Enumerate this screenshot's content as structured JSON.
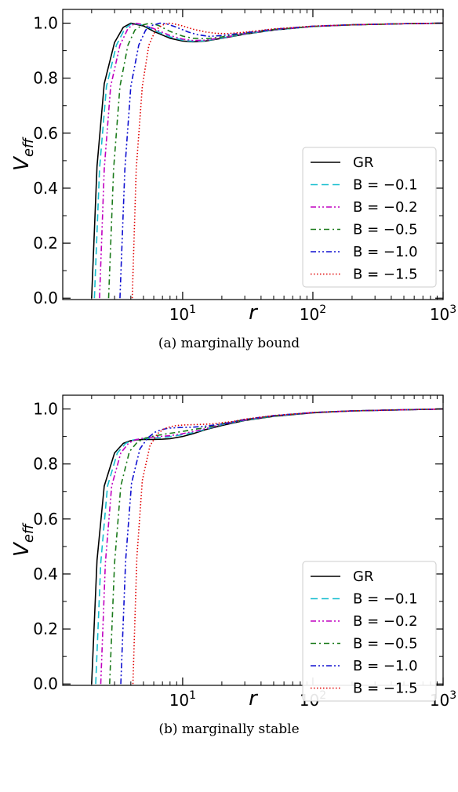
{
  "chart_data": [
    {
      "type": "line",
      "title": "",
      "caption": "(a) marginally bound",
      "xlabel": "r",
      "ylabel": "V_eff",
      "xscale": "log",
      "xlim": [
        1.2,
        1000
      ],
      "ylim": [
        -0.005,
        1.05
      ],
      "xticks": [
        {
          "value": 10,
          "label": "10",
          "exp": "1"
        },
        {
          "value": 100,
          "label": "10",
          "exp": "2"
        },
        {
          "value": 1000,
          "label": "10",
          "exp": "3"
        }
      ],
      "yticks": [
        "0.0",
        "0.2",
        "0.4",
        "0.6",
        "0.8",
        "1.0"
      ],
      "legend_position": "lower-right",
      "series": [
        {
          "name": "GR",
          "color": "#000000",
          "dash": "solid",
          "x": [
            2,
            2.2,
            2.5,
            3,
            3.5,
            4,
            5,
            6,
            8,
            10,
            12,
            15,
            20,
            30,
            50,
            100,
            200,
            500,
            1000
          ],
          "y": [
            0,
            0.48,
            0.78,
            0.93,
            0.985,
            1.0,
            0.99,
            0.97,
            0.945,
            0.935,
            0.932,
            0.935,
            0.945,
            0.96,
            0.975,
            0.988,
            0.994,
            0.998,
            1.0
          ]
        },
        {
          "name": "B = −0.1",
          "color": "#17becf",
          "dash": "dashed",
          "x": [
            2.1,
            2.3,
            2.6,
            3.1,
            3.6,
            4.1,
            5,
            6,
            8,
            10,
            12,
            15,
            20,
            30,
            50,
            100,
            200,
            500,
            1000
          ],
          "y": [
            0,
            0.47,
            0.77,
            0.92,
            0.98,
            1.0,
            0.993,
            0.975,
            0.95,
            0.938,
            0.934,
            0.936,
            0.946,
            0.961,
            0.975,
            0.988,
            0.994,
            0.998,
            1.0
          ]
        },
        {
          "name": "B = −0.2",
          "color": "#c000c0",
          "dash": "dashdotdot",
          "x": [
            2.3,
            2.5,
            2.8,
            3.3,
            3.8,
            4.3,
            5,
            6,
            8,
            10,
            12,
            15,
            20,
            30,
            50,
            100,
            200,
            500,
            1000
          ],
          "y": [
            0,
            0.47,
            0.77,
            0.92,
            0.98,
            1.0,
            0.995,
            0.98,
            0.955,
            0.942,
            0.937,
            0.938,
            0.947,
            0.962,
            0.976,
            0.988,
            0.994,
            0.998,
            1.0
          ]
        },
        {
          "name": "B = −0.5",
          "color": "#1a7a1a",
          "dash": "dashdot",
          "x": [
            2.7,
            2.95,
            3.3,
            3.8,
            4.3,
            4.9,
            5.6,
            6.5,
            8,
            10,
            12,
            15,
            20,
            30,
            50,
            100,
            200,
            500,
            1000
          ],
          "y": [
            0,
            0.47,
            0.77,
            0.92,
            0.975,
            0.993,
            1.0,
            0.992,
            0.97,
            0.953,
            0.945,
            0.943,
            0.95,
            0.963,
            0.977,
            0.988,
            0.994,
            0.998,
            1.0
          ]
        },
        {
          "name": "B = −1.0",
          "color": "#1010d0",
          "dash": "dashdotdot",
          "x": [
            3.3,
            3.6,
            4,
            4.6,
            5.2,
            5.9,
            6.7,
            7.5,
            9,
            11,
            13,
            16,
            20,
            30,
            50,
            100,
            200,
            500,
            1000
          ],
          "y": [
            0,
            0.47,
            0.77,
            0.92,
            0.975,
            0.993,
            1.0,
            0.998,
            0.985,
            0.968,
            0.958,
            0.952,
            0.955,
            0.965,
            0.978,
            0.989,
            0.994,
            0.998,
            1.0
          ]
        },
        {
          "name": "B = −1.5",
          "color": "#e00000",
          "dash": "dotted",
          "x": [
            4.1,
            4.4,
            4.9,
            5.5,
            6.2,
            7,
            7.8,
            8.5,
            10,
            12,
            15,
            18,
            22,
            30,
            50,
            100,
            200,
            500,
            1000
          ],
          "y": [
            0,
            0.47,
            0.77,
            0.92,
            0.975,
            0.993,
            1.0,
            0.998,
            0.99,
            0.978,
            0.968,
            0.963,
            0.962,
            0.967,
            0.979,
            0.989,
            0.994,
            0.998,
            1.0
          ]
        }
      ]
    },
    {
      "type": "line",
      "title": "",
      "caption": "(b) marginally stable",
      "xlabel": "r",
      "ylabel": "V_eff",
      "xscale": "log",
      "xlim": [
        1.2,
        1000
      ],
      "ylim": [
        -0.005,
        1.05
      ],
      "xticks": [
        {
          "value": 10,
          "label": "10",
          "exp": "1"
        },
        {
          "value": 100,
          "label": "10",
          "exp": "2"
        },
        {
          "value": 1000,
          "label": "10",
          "exp": "3"
        }
      ],
      "yticks": [
        "0.0",
        "0.2",
        "0.4",
        "0.6",
        "0.8",
        "1.0"
      ],
      "legend_position": "lower-right",
      "series": [
        {
          "name": "GR",
          "color": "#000000",
          "dash": "solid",
          "x": [
            2,
            2.2,
            2.5,
            3,
            3.5,
            4,
            4.5,
            5,
            6,
            7,
            8,
            10,
            12,
            15,
            20,
            30,
            50,
            100,
            200,
            500,
            1000
          ],
          "y": [
            0,
            0.45,
            0.72,
            0.84,
            0.875,
            0.885,
            0.888,
            0.889,
            0.889,
            0.89,
            0.892,
            0.9,
            0.91,
            0.925,
            0.94,
            0.958,
            0.973,
            0.986,
            0.993,
            0.997,
            1.0
          ]
        },
        {
          "name": "B = −0.1",
          "color": "#17becf",
          "dash": "dashed",
          "x": [
            2.15,
            2.35,
            2.65,
            3.15,
            3.65,
            4.15,
            4.7,
            5.3,
            6.3,
            7.5,
            9,
            11,
            13,
            16,
            20,
            30,
            50,
            100,
            200,
            500,
            1000
          ],
          "y": [
            0,
            0.44,
            0.72,
            0.84,
            0.875,
            0.887,
            0.891,
            0.893,
            0.895,
            0.898,
            0.903,
            0.91,
            0.918,
            0.93,
            0.943,
            0.959,
            0.974,
            0.987,
            0.993,
            0.997,
            1.0
          ]
        },
        {
          "name": "B = −0.2",
          "color": "#c000c0",
          "dash": "dashdotdot",
          "x": [
            2.35,
            2.55,
            2.85,
            3.35,
            3.85,
            4.35,
            5,
            5.7,
            6.7,
            8,
            9.5,
            11,
            13,
            16,
            20,
            30,
            50,
            100,
            200,
            500,
            1000
          ],
          "y": [
            0,
            0.44,
            0.72,
            0.84,
            0.876,
            0.888,
            0.894,
            0.897,
            0.9,
            0.903,
            0.908,
            0.914,
            0.921,
            0.932,
            0.944,
            0.96,
            0.975,
            0.987,
            0.993,
            0.997,
            1.0
          ]
        },
        {
          "name": "B = −0.5",
          "color": "#1a7a1a",
          "dash": "dashdot",
          "x": [
            2.75,
            3,
            3.35,
            3.9,
            4.5,
            5.1,
            5.8,
            6.6,
            7.6,
            9,
            10.5,
            12,
            14,
            17,
            20,
            30,
            50,
            100,
            200,
            500,
            1000
          ],
          "y": [
            0,
            0.44,
            0.72,
            0.845,
            0.88,
            0.893,
            0.9,
            0.905,
            0.91,
            0.915,
            0.92,
            0.925,
            0.93,
            0.937,
            0.946,
            0.961,
            0.975,
            0.987,
            0.993,
            0.997,
            1.0
          ]
        },
        {
          "name": "B = −1.0",
          "color": "#1010d0",
          "dash": "dashdotdot",
          "x": [
            3.35,
            3.65,
            4.05,
            4.7,
            5.4,
            6.1,
            6.9,
            7.8,
            9,
            10.5,
            12,
            14,
            16,
            18,
            22,
            30,
            50,
            100,
            200,
            500,
            1000
          ],
          "y": [
            0,
            0.45,
            0.73,
            0.855,
            0.895,
            0.915,
            0.925,
            0.93,
            0.932,
            0.933,
            0.934,
            0.936,
            0.939,
            0.943,
            0.949,
            0.962,
            0.976,
            0.987,
            0.993,
            0.997,
            1.0
          ]
        },
        {
          "name": "B = −1.5",
          "color": "#e00000",
          "dash": "dotted",
          "x": [
            4.15,
            4.45,
            4.9,
            5.6,
            6.4,
            7.2,
            8.1,
            9,
            10.5,
            12,
            14,
            16,
            18,
            20,
            24,
            30,
            50,
            100,
            200,
            500,
            1000
          ],
          "y": [
            0,
            0.46,
            0.74,
            0.865,
            0.91,
            0.928,
            0.936,
            0.94,
            0.942,
            0.943,
            0.944,
            0.945,
            0.947,
            0.95,
            0.954,
            0.963,
            0.976,
            0.987,
            0.993,
            0.997,
            1.0
          ]
        }
      ]
    }
  ]
}
